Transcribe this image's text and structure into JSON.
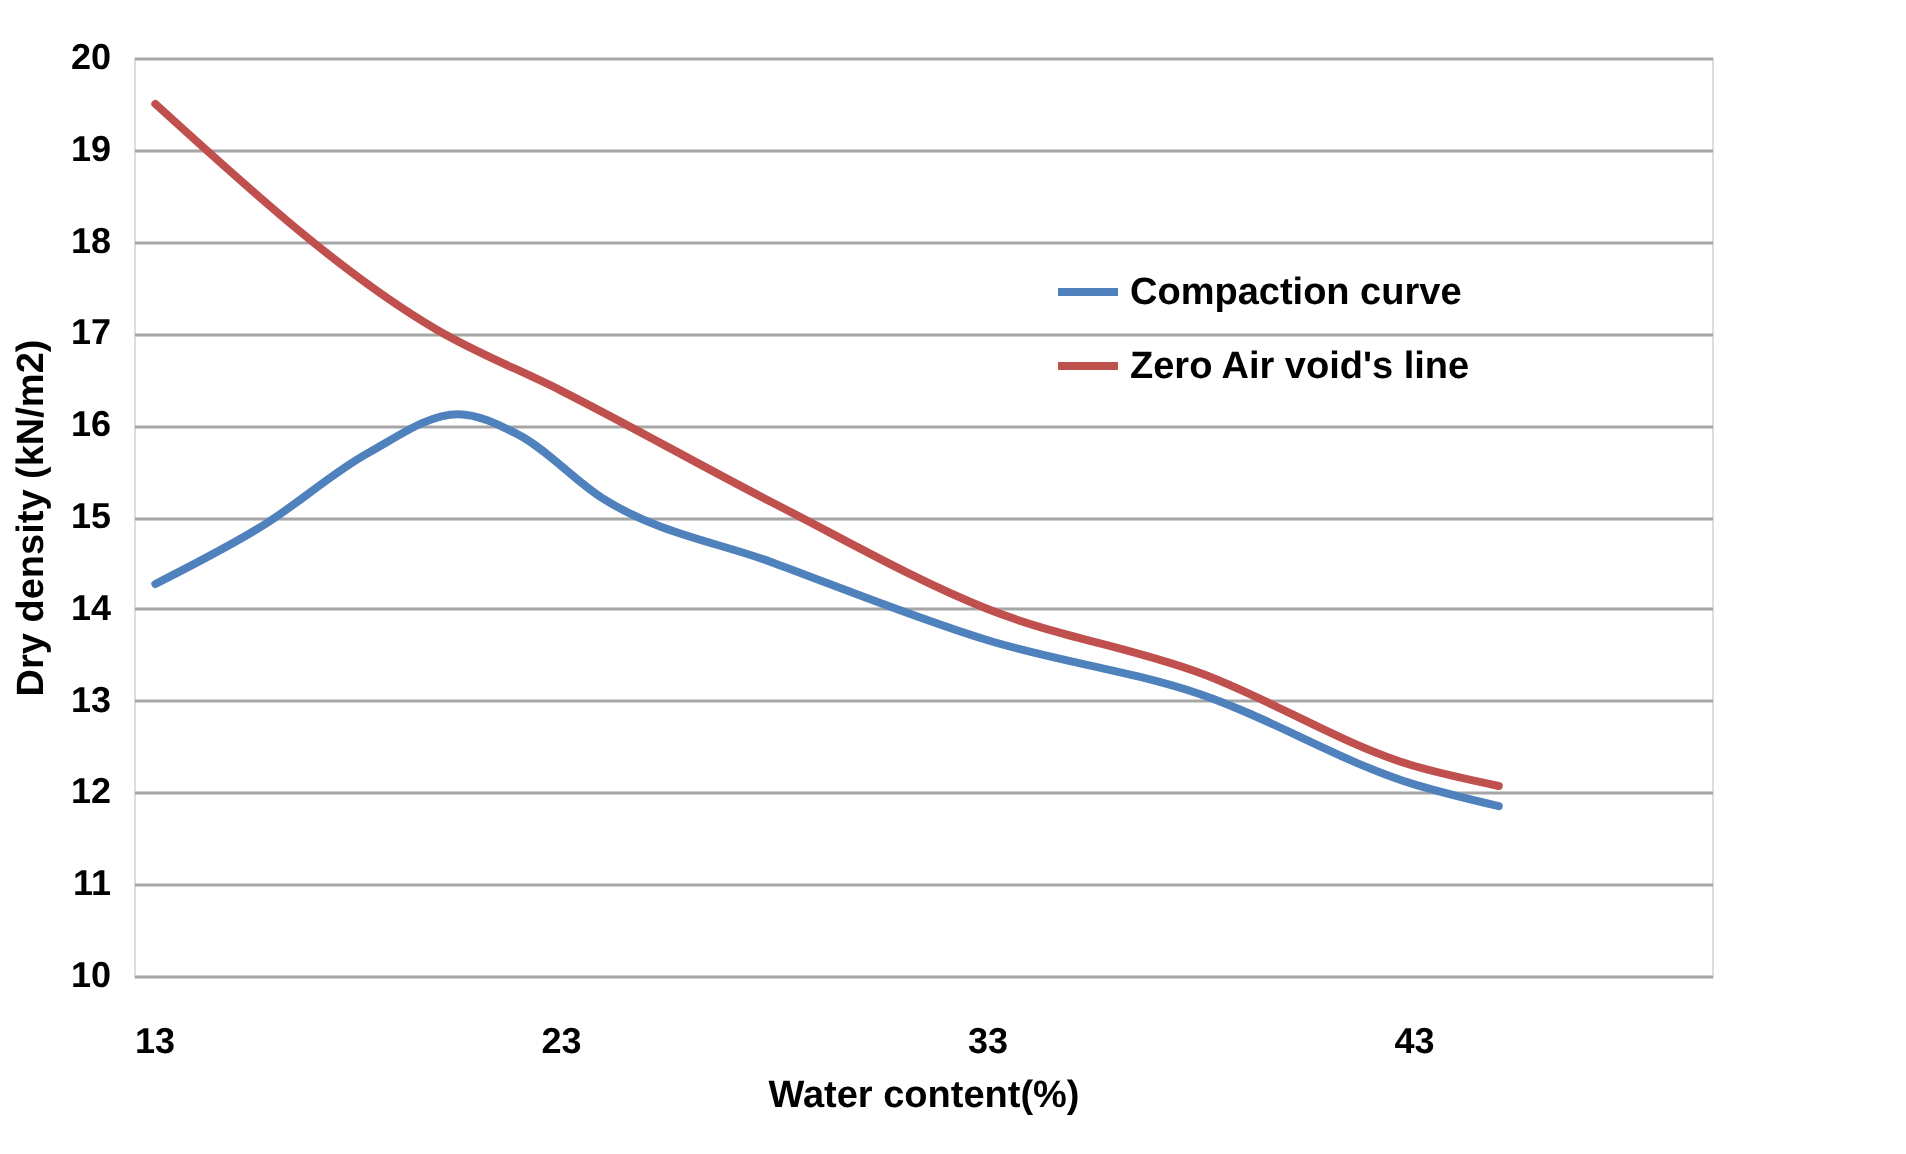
{
  "chart_data": {
    "type": "line",
    "xlabel": "Water content(%)",
    "ylabel": "Dry density (kN/m2)",
    "xlim": [
      13,
      50
    ],
    "xticks": [
      13,
      23,
      33,
      43
    ],
    "ylim": [
      10,
      20
    ],
    "yticks": [
      10,
      11,
      12,
      13,
      14,
      15,
      16,
      17,
      18,
      19,
      20
    ],
    "grid": "y",
    "legend": "right",
    "marker": "none",
    "line_style": "solid",
    "series": [
      {
        "name": "Compaction curve",
        "color": "#4f81bd",
        "x": [
          13.5,
          16,
          18.5,
          20.6,
          22,
          24,
          28,
          33,
          38,
          43,
          45
        ],
        "values": [
          14.27,
          14.9,
          15.7,
          16.12,
          15.9,
          15.2,
          14.5,
          13.66,
          13.07,
          12.09,
          11.85
        ]
      },
      {
        "name": "Zero Air void's line",
        "color": "#c0504d",
        "x": [
          13.5,
          20.1,
          23,
          28,
          33,
          38,
          43,
          45
        ],
        "values": [
          19.5,
          17.04,
          16.38,
          15.15,
          14.0,
          13.3,
          12.29,
          12.07
        ]
      }
    ]
  }
}
